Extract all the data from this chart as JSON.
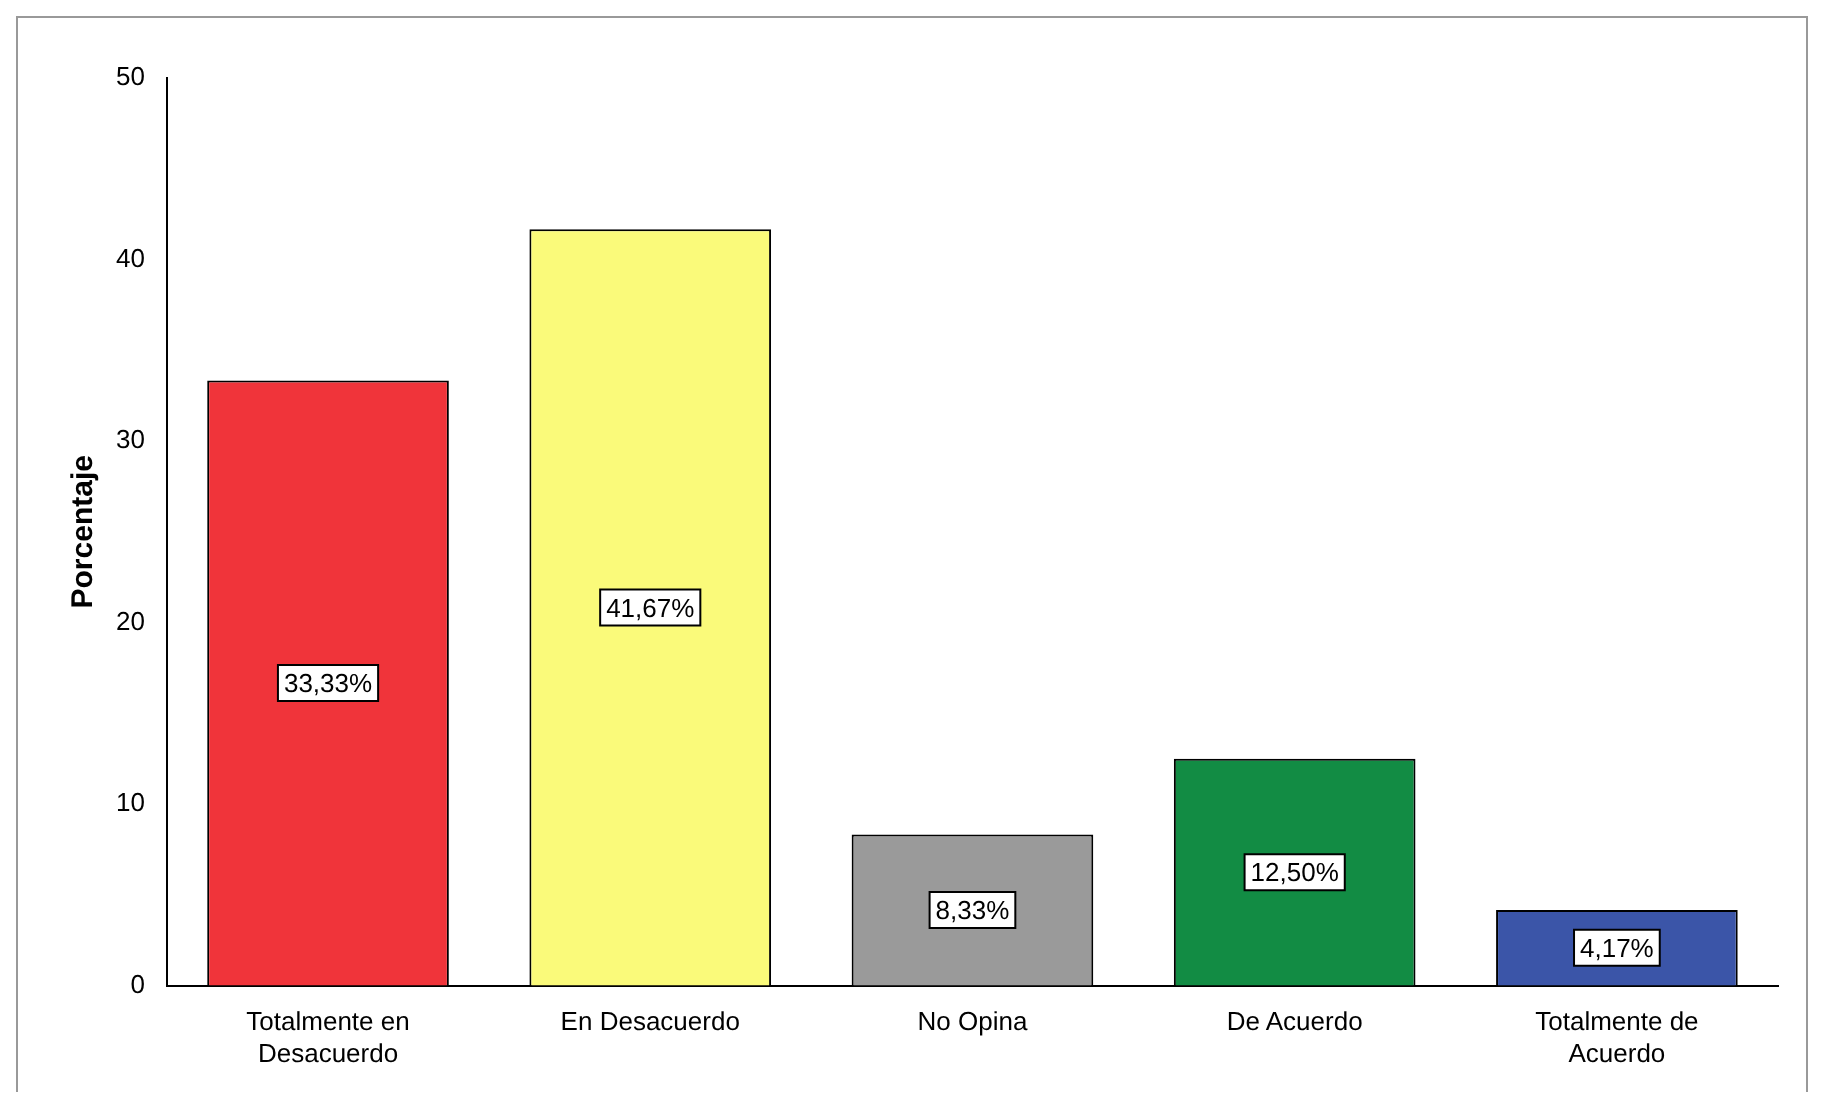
{
  "chart_data": {
    "type": "bar",
    "ylabel": "Porcentaje",
    "categories": [
      "Totalmente en Desacuerdo",
      "En Desacuerdo",
      "No Opina",
      "De Acuerdo",
      "Totalmente de Acuerdo"
    ],
    "values": [
      33.33,
      41.67,
      8.33,
      12.5,
      4.17
    ],
    "colors": [
      "#f0343a",
      "#fafa7a",
      "#9a9a9a",
      "#128c44",
      "#3b55a8"
    ],
    "value_labels": [
      "33,33%",
      "41,67%",
      "8,33%",
      "12,50%",
      "4,17%"
    ],
    "ylim": [
      0,
      50
    ],
    "yticks": [
      0,
      10,
      20,
      30,
      40,
      50
    ],
    "grid": false,
    "legend": false
  }
}
